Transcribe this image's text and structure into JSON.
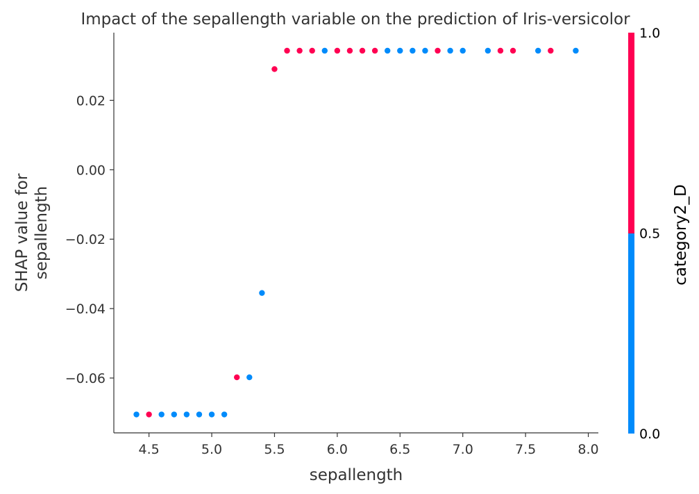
{
  "chart_data": {
    "type": "scatter",
    "title": "Impact of the sepallength variable on the prediction of Iris-versicolor",
    "xlabel": "sepallength",
    "ylabel_lines": [
      "SHAP value for",
      "sepallength"
    ],
    "xlim": [
      4.22,
      8.08
    ],
    "ylim": [
      -0.0758,
      0.0395
    ],
    "x_ticks": [
      4.5,
      5.0,
      5.5,
      6.0,
      6.5,
      7.0,
      7.5,
      8.0
    ],
    "x_tick_labels": [
      "4.5",
      "5.0",
      "5.5",
      "6.0",
      "6.5",
      "7.0",
      "7.5",
      "8.0"
    ],
    "y_ticks": [
      0.02,
      0.0,
      -0.02,
      -0.04,
      -0.06
    ],
    "y_tick_labels": [
      "0.02",
      "0.00",
      "−0.02",
      "−0.04",
      "−0.06"
    ],
    "grid": false,
    "colorbar": {
      "label": "category2_D",
      "ticks": [
        0.0,
        0.5,
        1.0
      ],
      "tick_labels": [
        "0.0",
        "0.5",
        "1.0"
      ],
      "low_color": "#008bfb",
      "high_color": "#ff0052"
    },
    "points": [
      {
        "x": 4.4,
        "y": -0.0705,
        "c": 0
      },
      {
        "x": 4.5,
        "y": -0.0705,
        "c": 1
      },
      {
        "x": 4.6,
        "y": -0.0705,
        "c": 0
      },
      {
        "x": 4.7,
        "y": -0.0705,
        "c": 0
      },
      {
        "x": 4.8,
        "y": -0.0705,
        "c": 0
      },
      {
        "x": 4.9,
        "y": -0.0705,
        "c": 0
      },
      {
        "x": 5.0,
        "y": -0.0705,
        "c": 0
      },
      {
        "x": 5.1,
        "y": -0.0705,
        "c": 0
      },
      {
        "x": 5.2,
        "y": -0.0598,
        "c": 1
      },
      {
        "x": 5.3,
        "y": -0.0598,
        "c": 0
      },
      {
        "x": 5.4,
        "y": -0.0355,
        "c": 0
      },
      {
        "x": 5.5,
        "y": 0.029,
        "c": 1
      },
      {
        "x": 5.6,
        "y": 0.0343,
        "c": 1
      },
      {
        "x": 5.7,
        "y": 0.0343,
        "c": 1
      },
      {
        "x": 5.8,
        "y": 0.0343,
        "c": 1
      },
      {
        "x": 5.9,
        "y": 0.0343,
        "c": 0
      },
      {
        "x": 6.0,
        "y": 0.0343,
        "c": 1
      },
      {
        "x": 6.1,
        "y": 0.0343,
        "c": 1
      },
      {
        "x": 6.2,
        "y": 0.0343,
        "c": 1
      },
      {
        "x": 6.3,
        "y": 0.0343,
        "c": 1
      },
      {
        "x": 6.4,
        "y": 0.0343,
        "c": 0
      },
      {
        "x": 6.5,
        "y": 0.0343,
        "c": 0
      },
      {
        "x": 6.6,
        "y": 0.0343,
        "c": 0
      },
      {
        "x": 6.7,
        "y": 0.0343,
        "c": 0
      },
      {
        "x": 6.8,
        "y": 0.0343,
        "c": 1
      },
      {
        "x": 6.9,
        "y": 0.0343,
        "c": 0
      },
      {
        "x": 7.0,
        "y": 0.0343,
        "c": 0
      },
      {
        "x": 7.2,
        "y": 0.0343,
        "c": 0
      },
      {
        "x": 7.3,
        "y": 0.0343,
        "c": 1
      },
      {
        "x": 7.4,
        "y": 0.0343,
        "c": 1
      },
      {
        "x": 7.6,
        "y": 0.0343,
        "c": 0
      },
      {
        "x": 7.7,
        "y": 0.0343,
        "c": 1
      },
      {
        "x": 7.9,
        "y": 0.0343,
        "c": 0
      }
    ]
  }
}
